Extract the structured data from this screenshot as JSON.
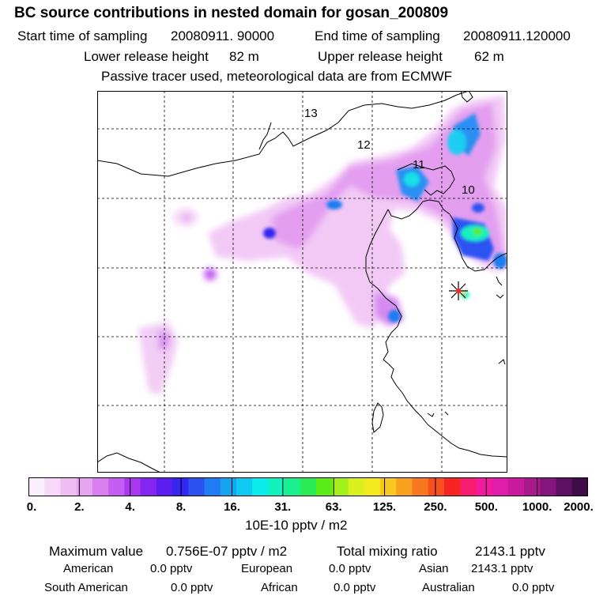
{
  "header": {
    "title": "BC  source contributions in nested domain for gosan_200809",
    "start_label": "Start time of sampling",
    "start_value": "20080911. 90000",
    "end_label": "End time of sampling",
    "end_value": "20080911.120000",
    "lower_label": "Lower release height",
    "lower_value": "82 m",
    "upper_label": "Upper release height",
    "upper_value": "62 m",
    "note": "Passive tracer used, meteorological data are from ECMWF"
  },
  "map": {
    "time_labels": [
      {
        "text": "13"
      },
      {
        "text": "12"
      },
      {
        "text": "11"
      },
      {
        "text": "10"
      }
    ],
    "release_marker": "star-marker-icon"
  },
  "colorbar": {
    "colors": [
      "#fbeffb",
      "#f5d9f7",
      "#efbff4",
      "#e6a3f0",
      "#d87ff0",
      "#c35ef0",
      "#a938ef",
      "#8526f0",
      "#5a1ef0",
      "#3526f0",
      "#2a52f2",
      "#1f7cf2",
      "#15a3f2",
      "#0fcaf0",
      "#0cecec",
      "#12f2bd",
      "#1af08e",
      "#2aea55",
      "#5ced18",
      "#a4f01a",
      "#d9f01e",
      "#f3e91f",
      "#f7c81f",
      "#f7a11f",
      "#f7781f",
      "#f74f1f",
      "#f72424",
      "#f71d6e",
      "#f21b9e",
      "#e01ca8",
      "#c81a9c",
      "#a8198c",
      "#84157c",
      "#5e1163",
      "#3e0c48"
    ],
    "tick_labels": [
      "0.",
      "2.",
      "4.",
      "8.",
      "16.",
      "31.",
      "63.",
      "125.",
      "250.",
      "500.",
      "1000.",
      "2000."
    ],
    "units": "10E-10 pptv / m2"
  },
  "footer": {
    "max_label": "Maximum value",
    "max_value": "0.756E-07 pptv / m2",
    "total_label": "Total mixing ratio",
    "total_value": "2143.1 pptv",
    "regions": [
      {
        "name": "American",
        "value": "0.0 pptv"
      },
      {
        "name": "European",
        "value": "0.0 pptv"
      },
      {
        "name": "Asian",
        "value": "2143.1 pptv"
      },
      {
        "name": "South American",
        "value": "0.0 pptv"
      },
      {
        "name": "African",
        "value": "0.0 pptv"
      },
      {
        "name": "Australian",
        "value": "0.0 pptv"
      }
    ]
  }
}
